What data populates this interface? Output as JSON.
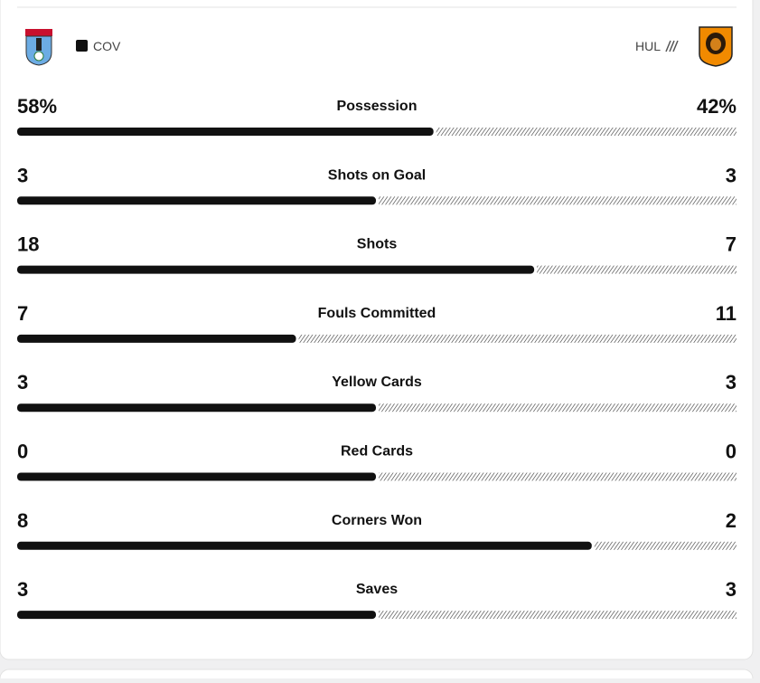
{
  "teams": {
    "home": "COV",
    "away": "HUL"
  },
  "stats": [
    {
      "label": "Possession",
      "home": 58,
      "away": 42,
      "home_label": "58%",
      "away_label": "42%"
    },
    {
      "label": "Shots on Goal",
      "home": 3,
      "away": 3
    },
    {
      "label": "Shots",
      "home": 18,
      "away": 7
    },
    {
      "label": "Fouls Committed",
      "home": 7,
      "away": 11
    },
    {
      "label": "Yellow Cards",
      "home": 3,
      "away": 3
    },
    {
      "label": "Red Cards",
      "home": 0,
      "away": 0
    },
    {
      "label": "Corners Won",
      "home": 8,
      "away": 2
    },
    {
      "label": "Saves",
      "home": 3,
      "away": 3
    }
  ]
}
